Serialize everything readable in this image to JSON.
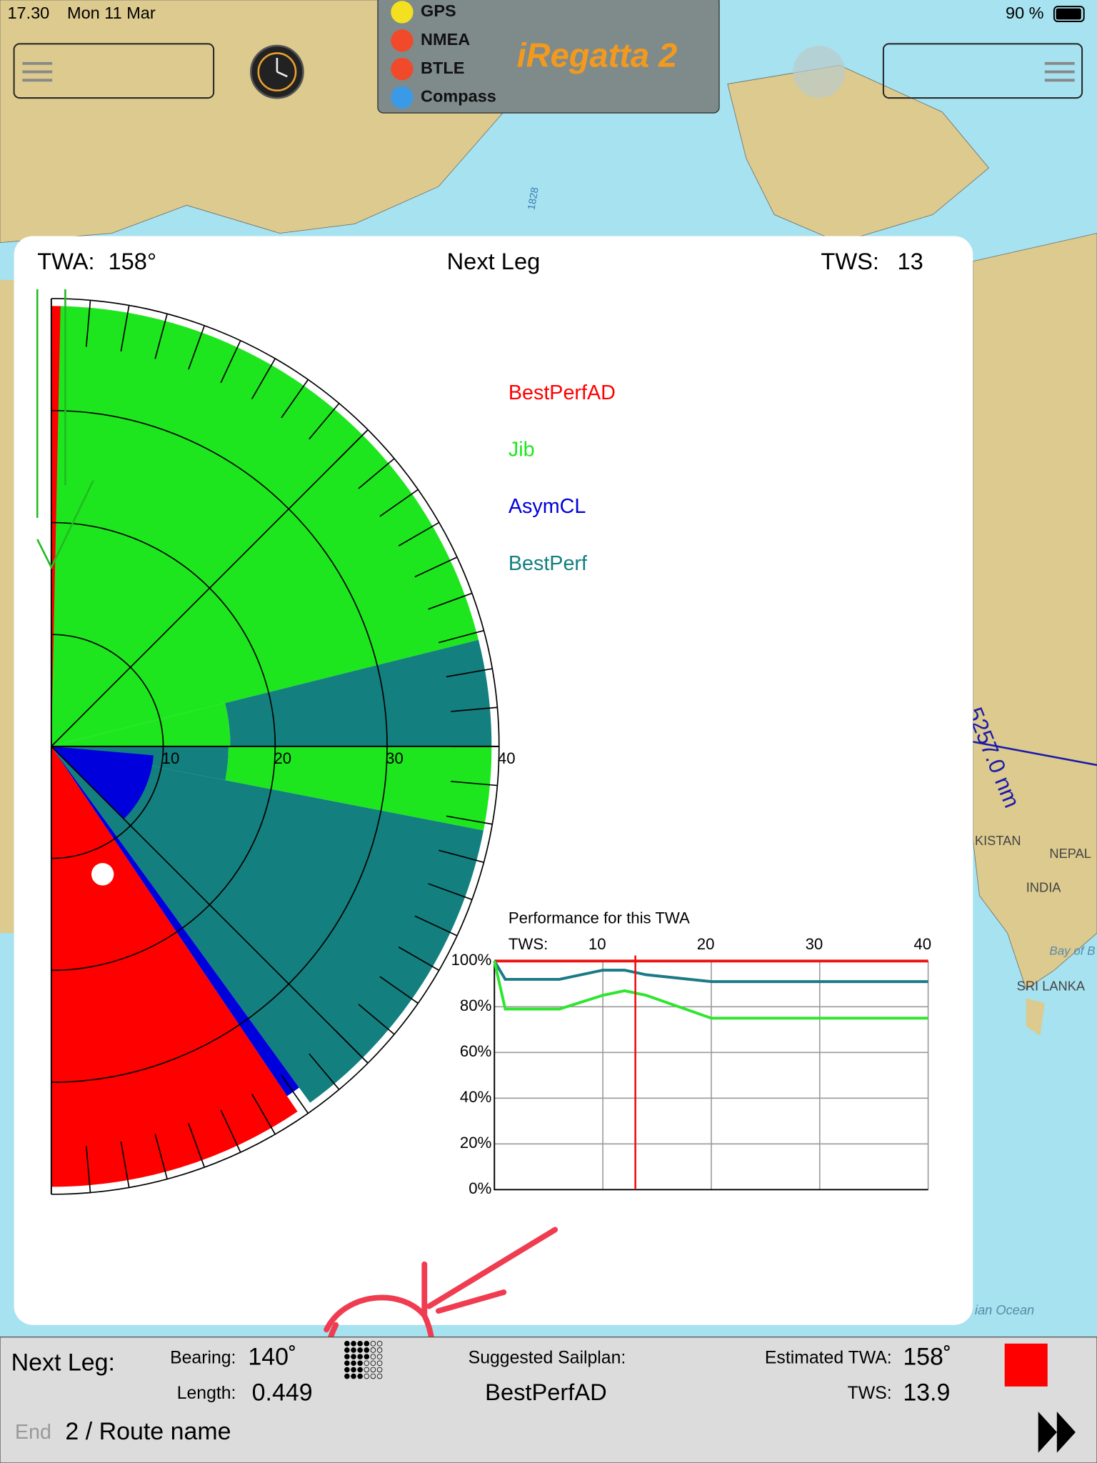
{
  "status_bar": {
    "time": "17.30",
    "date": "Mon 11 Mar",
    "battery": "90 %"
  },
  "toolbar": {
    "indicators": [
      "GPS",
      "NMEA",
      "BTLE",
      "Compass"
    ],
    "app_title": "iRegatta 2"
  },
  "map_labels": [
    "1828",
    "KISTAN",
    "NEPAL",
    "INDIA",
    "SRI LANKA",
    "Bay of B",
    "ian Ocean",
    "5257.0 nm"
  ],
  "panel": {
    "twa_label": "TWA:",
    "twa_value": "158°",
    "title": "Next Leg",
    "tws_label": "TWS:",
    "tws_value": 13,
    "polar": {
      "ring_ticks": [
        10,
        20,
        30,
        40
      ],
      "legend": [
        {
          "name": "BestPerfAD",
          "color": "#ff0000"
        },
        {
          "name": "Jib",
          "color": "#1ee61e"
        },
        {
          "name": "AsymCL",
          "color": "#0000dd"
        },
        {
          "name": "BestPerf",
          "color": "#137f7f"
        }
      ]
    }
  },
  "chart_data": {
    "type": "line",
    "title": "Performance for this TWA",
    "x_label": "TWS:",
    "x": [
      0,
      1,
      6,
      10,
      12,
      14,
      20,
      40
    ],
    "series": [
      {
        "name": "BestPerfAD",
        "color": "#ee1111",
        "values": [
          100,
          100,
          100,
          100,
          100,
          100,
          100,
          100
        ]
      },
      {
        "name": "BestPerf",
        "color": "#1b7a86",
        "values": [
          100,
          92,
          92,
          96,
          96,
          94,
          91,
          91
        ]
      },
      {
        "name": "Jib",
        "color": "#2ee62e",
        "values": [
          100,
          79,
          79,
          85,
          87,
          85,
          75,
          75
        ]
      }
    ],
    "xlim": [
      0,
      40
    ],
    "xticks": [
      10,
      20,
      30,
      40
    ],
    "ylim": [
      0,
      100
    ],
    "yticks": [
      {
        "value": 0,
        "label": "0%"
      },
      {
        "value": 20,
        "label": "20%"
      },
      {
        "value": 40,
        "label": "40%"
      },
      {
        "value": 60,
        "label": "60%"
      },
      {
        "value": 80,
        "label": "80%"
      },
      {
        "value": 100,
        "label": "100%"
      }
    ],
    "grid": true
  },
  "bottom_bar": {
    "title": "Next Leg:",
    "bearing_label": "Bearing:",
    "bearing": "140˚",
    "length_label": "Length:",
    "length": "0.449",
    "sailplan_label": "Suggested Sailplan:",
    "sailplan": "BestPerfAD",
    "est_twa_label": "Estimated TWA:",
    "est_twa": "158˚",
    "tws_label": "TWS:",
    "tws": "13.9",
    "end_label": "End",
    "route": "2 / Route name"
  }
}
